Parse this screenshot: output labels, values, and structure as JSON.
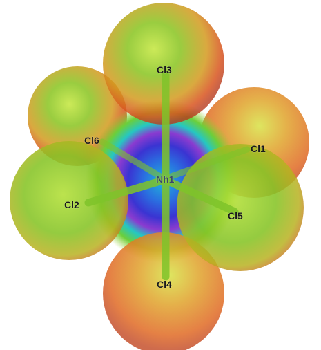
{
  "molecule": {
    "center_atom": {
      "label": "Nh1"
    },
    "ligands": [
      {
        "id": "cl3",
        "label": "Cl3"
      },
      {
        "id": "cl6",
        "label": "Cl6"
      },
      {
        "id": "cl1",
        "label": "Cl1"
      },
      {
        "id": "cl2",
        "label": "Cl2"
      },
      {
        "id": "cl5",
        "label": "Cl5"
      },
      {
        "id": "cl4",
        "label": "Cl4"
      }
    ]
  },
  "colors": {
    "sphere_green": "#7bc422",
    "sphere_orange": "#e07a1c",
    "sphere_red": "#c8401e",
    "core_blue": "#2a3fd8",
    "core_cyan": "#23c6c8",
    "core_magenta": "#8a3bd0",
    "bond_green": "#86c82a"
  }
}
